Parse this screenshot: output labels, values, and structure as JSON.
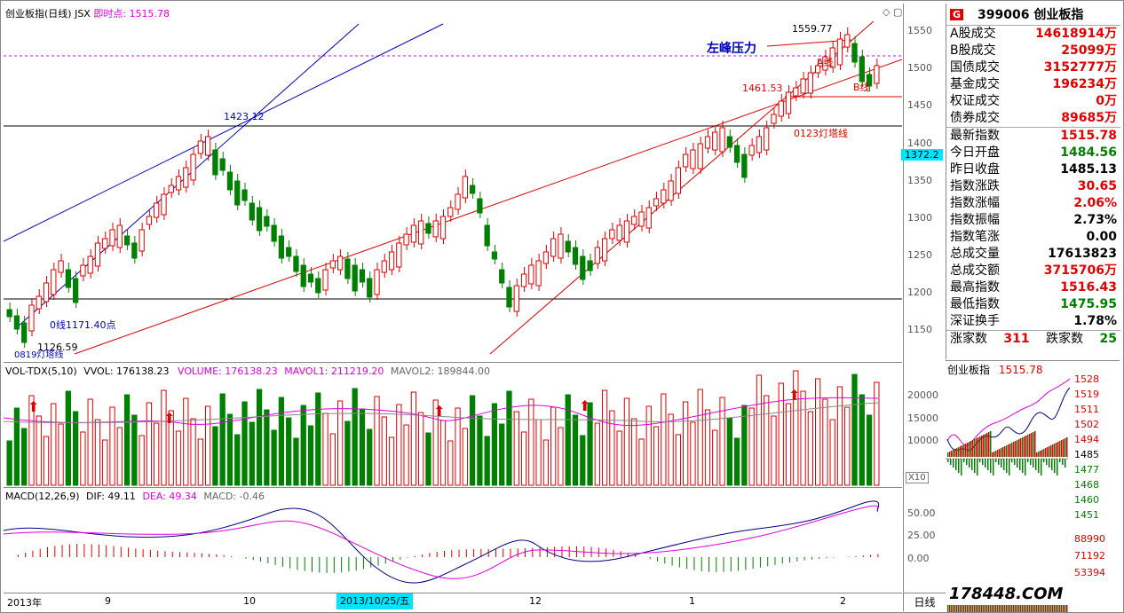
{
  "header": {
    "title": "创业板指(日线) JSX",
    "instant_label": "即时点:",
    "instant_value": "1515.78"
  },
  "annotations": {
    "left_peak": "左峰压力",
    "peak_value": "1559.77",
    "a_line": "A线",
    "b_line": "B线",
    "level_1461": "1461.53",
    "line_0123": "0123灯塔线",
    "level_1423": "1423.12",
    "line_0": "0线1171.40点",
    "low_1126": "1126.59",
    "line_0819": "0819灯塔线"
  },
  "price_axis": [
    "1550",
    "1500",
    "1450",
    "1400",
    "1350",
    "1300",
    "1250",
    "1200",
    "1150"
  ],
  "price_marker": "1372.2",
  "volume": {
    "title": "VOL-TDX(5,10)",
    "vvol": "VVOL: 176138.23",
    "volume": "VOLUME: 176138.23",
    "mavol1": "MAVOL1: 211219.20",
    "mavol2": "MAVOL2: 189844.00",
    "axis": [
      "20000",
      "15000",
      "10000"
    ],
    "unit": "X10"
  },
  "macd": {
    "title": "MACD(12,26,9)",
    "dif": "DIF: 49.11",
    "dea": "DEA: 49.34",
    "macd": "MACD: -0.46",
    "axis": [
      "50.00",
      "25.00",
      "0.00"
    ]
  },
  "dates": {
    "year": "2013年",
    "m9": "9",
    "m10": "10",
    "highlight": "2013/10/25/五",
    "m12": "12",
    "m1": "1",
    "m2": "2",
    "period": "日线"
  },
  "panel": {
    "badge": "G",
    "code_name": "399006 创业板指",
    "rows1": [
      {
        "k": "A股成交",
        "v": "14618914万"
      },
      {
        "k": "B股成交",
        "v": "25099万"
      },
      {
        "k": "国债成交",
        "v": "3152777万"
      },
      {
        "k": "基金成交",
        "v": "196234万"
      },
      {
        "k": "权证成交",
        "v": "0万"
      },
      {
        "k": "债券成交",
        "v": "89685万"
      }
    ],
    "rows2": [
      {
        "k": "最新指数",
        "v": "1515.78"
      },
      {
        "k": "今日开盘",
        "v": "1484.56"
      },
      {
        "k": "昨日收盘",
        "v": "1485.13"
      },
      {
        "k": "指数涨跌",
        "v": "30.65"
      },
      {
        "k": "指数涨幅",
        "v": "2.06%"
      },
      {
        "k": "指数振幅",
        "v": "2.73%"
      },
      {
        "k": "指数笔涨",
        "v": "0.00"
      },
      {
        "k": "总成交量",
        "v": "17613823"
      },
      {
        "k": "总成交额",
        "v": "3715706万"
      },
      {
        "k": "最高指数",
        "v": "1516.43"
      },
      {
        "k": "最低指数",
        "v": "1475.95"
      },
      {
        "k": "深证换手",
        "v": "1.78%"
      }
    ],
    "up_label": "涨家数",
    "up_value": "311",
    "down_label": "跌家数",
    "down_value": "25"
  },
  "mini": {
    "title": "创业板指",
    "value": "1515.78",
    "axis": [
      "1528",
      "1519",
      "1511",
      "1502",
      "1494",
      "1485",
      "1477",
      "1468",
      "1460",
      "1451"
    ],
    "vol_axis": [
      "88990",
      "71192",
      "53394"
    ],
    "watermark": "178448.COM"
  },
  "colors": {
    "up": "#e00000",
    "down": "#008000",
    "blue": "#0000c0",
    "magenta": "#e000e0"
  }
}
